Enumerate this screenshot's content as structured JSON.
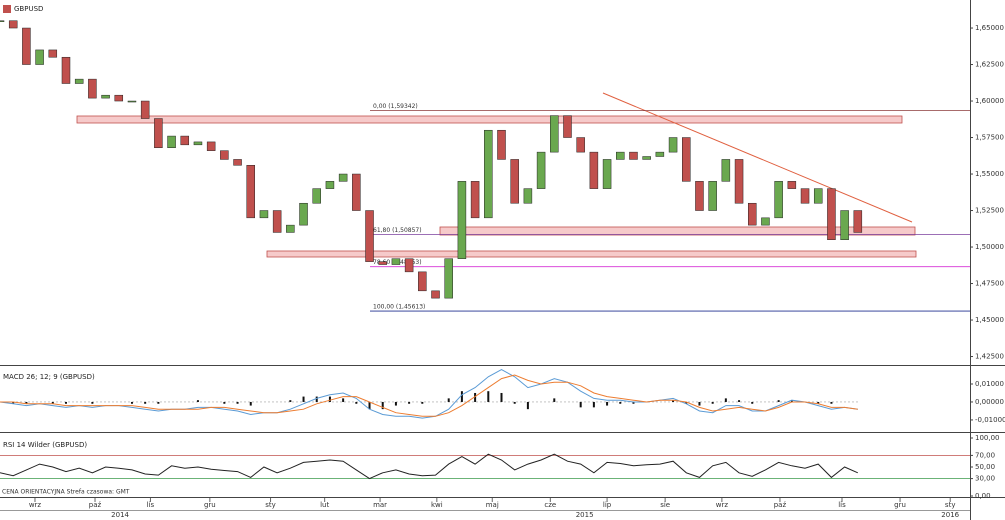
{
  "chart_data": [
    {
      "type": "candlestick",
      "title": "GBPUSD",
      "up_color": "#6aa84f",
      "down_color": "#c0504d",
      "x": [
        0,
        1,
        2,
        3,
        4,
        5,
        6,
        7,
        8,
        9,
        10,
        11,
        12,
        13,
        14,
        15,
        16,
        17,
        18,
        19,
        20,
        21,
        22,
        23,
        24,
        25,
        26,
        27,
        28,
        29,
        30,
        31,
        32,
        33,
        34,
        35,
        36,
        37,
        38,
        39,
        40,
        41,
        42,
        43,
        44,
        45,
        46,
        47,
        48,
        49,
        50,
        51,
        52,
        53,
        54,
        55,
        56,
        57,
        58,
        59,
        60,
        61,
        62,
        63,
        64,
        65
      ],
      "close": [
        1.655,
        1.65,
        1.625,
        1.635,
        1.63,
        1.612,
        1.615,
        1.602,
        1.604,
        1.6,
        1.6,
        1.588,
        1.568,
        1.576,
        1.57,
        1.572,
        1.566,
        1.56,
        1.556,
        1.52,
        1.525,
        1.51,
        1.515,
        1.53,
        1.54,
        1.545,
        1.55,
        1.525,
        1.49,
        1.488,
        1.492,
        1.483,
        1.47,
        1.465,
        1.492,
        1.545,
        1.52,
        1.58,
        1.56,
        1.53,
        1.54,
        1.565,
        1.59,
        1.575,
        1.565,
        1.54,
        1.56,
        1.565,
        1.56,
        1.562,
        1.565,
        1.575,
        1.545,
        1.525,
        1.545,
        1.56,
        1.53,
        1.515,
        1.52,
        1.545,
        1.54,
        1.53,
        1.54,
        1.505,
        1.525,
        1.51
      ],
      "xlim": [
        0,
        73.5
      ],
      "ylim": [
        1.4192,
        1.6692
      ],
      "yticks": [
        {
          "value": 1.65,
          "label": "1,65000"
        },
        {
          "value": 1.625,
          "label": "1,62500"
        },
        {
          "value": 1.6,
          "label": "1,60000"
        },
        {
          "value": 1.575,
          "label": "1,57500"
        },
        {
          "value": 1.55,
          "label": "1,55000"
        },
        {
          "value": 1.525,
          "label": "1,52500"
        },
        {
          "value": 1.5,
          "label": "1,50000"
        },
        {
          "value": 1.475,
          "label": "1,47500"
        },
        {
          "value": 1.45,
          "label": "1,45000"
        },
        {
          "value": 1.425,
          "label": "1,42500"
        }
      ],
      "levels": [
        {
          "label": "0,00 (1,59342)",
          "value": 1.59342,
          "color": "#8b3a3a"
        },
        {
          "label": "61,80 (1,50857)",
          "value": 1.50857,
          "color": "#7b3f9e"
        },
        {
          "label": "78,60 (1,48653)",
          "value": 1.48653,
          "color": "#d633d6"
        },
        {
          "label": "100,00 (1,45613)",
          "value": 1.45613,
          "color": "#1f2f8f"
        }
      ]
    },
    {
      "type": "line",
      "title": "MACD 26; 12; 9 (GBPUSD)",
      "x": [
        0,
        1,
        2,
        3,
        4,
        5,
        6,
        7,
        8,
        9,
        10,
        11,
        12,
        13,
        14,
        15,
        16,
        17,
        18,
        19,
        20,
        21,
        22,
        23,
        24,
        25,
        26,
        27,
        28,
        29,
        30,
        31,
        32,
        33,
        34,
        35,
        36,
        37,
        38,
        39,
        40,
        41,
        42,
        43,
        44,
        45,
        46,
        47,
        48,
        49,
        50,
        51,
        52,
        53,
        54,
        55,
        56,
        57,
        58,
        59,
        60,
        61,
        62,
        63,
        64,
        65
      ],
      "series": [
        {
          "color": "#5b9bd5",
          "values": [
            0,
            -0.001,
            -0.002,
            -0.001,
            -0.002,
            -0.003,
            -0.002,
            -0.003,
            -0.002,
            -0.002,
            -0.003,
            -0.004,
            -0.005,
            -0.004,
            -0.004,
            -0.003,
            -0.003,
            -0.004,
            -0.005,
            -0.007,
            -0.006,
            -0.006,
            -0.004,
            -0.001,
            0.002,
            0.004,
            0.005,
            0.002,
            -0.004,
            -0.007,
            -0.008,
            -0.008,
            -0.009,
            -0.008,
            -0.004,
            0.004,
            0.008,
            0.014,
            0.018,
            0.014,
            0.008,
            0.01,
            0.013,
            0.011,
            0.006,
            0.002,
            0.001,
            0.001,
            0.0,
            0.0,
            0.001,
            0.002,
            -0.001,
            -0.005,
            -0.006,
            -0.002,
            -0.002,
            -0.005,
            -0.005,
            -0.002,
            0.001,
            0.0,
            -0.002,
            -0.004,
            -0.003,
            -0.004
          ]
        },
        {
          "color": "#ed7d31",
          "values": [
            0,
            0,
            -0.001,
            -0.001,
            -0.001,
            -0.002,
            -0.002,
            -0.002,
            -0.002,
            -0.002,
            -0.002,
            -0.003,
            -0.004,
            -0.004,
            -0.004,
            -0.004,
            -0.003,
            -0.003,
            -0.004,
            -0.005,
            -0.006,
            -0.006,
            -0.005,
            -0.004,
            -0.001,
            0.001,
            0.003,
            0.003,
            0.0,
            -0.003,
            -0.006,
            -0.007,
            -0.008,
            -0.008,
            -0.006,
            -0.002,
            0.003,
            0.008,
            0.013,
            0.015,
            0.012,
            0.01,
            0.011,
            0.011,
            0.009,
            0.005,
            0.003,
            0.002,
            0.001,
            0.0,
            0.001,
            0.001,
            0.0,
            -0.003,
            -0.005,
            -0.004,
            -0.003,
            -0.004,
            -0.005,
            -0.003,
            0.0,
            0.0,
            -0.001,
            -0.003,
            -0.003,
            -0.004
          ]
        }
      ],
      "histogram": [
        0,
        -0.001,
        -0.001,
        0,
        -0.001,
        -0.001,
        0,
        -0.001,
        0,
        0,
        -0.001,
        -0.001,
        -0.001,
        0,
        0,
        0.001,
        0,
        -0.001,
        -0.001,
        -0.002,
        0,
        0,
        0.001,
        0.003,
        0.003,
        0.003,
        0.002,
        -0.001,
        -0.004,
        -0.004,
        -0.002,
        -0.001,
        -0.001,
        0,
        0.002,
        0.006,
        0.005,
        0.006,
        0.005,
        -0.001,
        -0.004,
        0,
        0.002,
        0,
        -0.003,
        -0.003,
        -0.002,
        -0.001,
        -0.001,
        0,
        0,
        0.001,
        -0.001,
        -0.002,
        -0.001,
        0.002,
        0.001,
        -0.001,
        0,
        0.001,
        0.001,
        0,
        -0.001,
        -0.001,
        0,
        0
      ],
      "xlim": [
        0,
        73.5
      ],
      "ylim": [
        -0.0156,
        0.0189
      ],
      "yticks": [
        {
          "value": 0.01,
          "label": "0,01000"
        },
        {
          "value": 0,
          "label": "0,00000"
        },
        {
          "value": -0.01,
          "label": "-0,01000"
        }
      ]
    },
    {
      "type": "line",
      "title": "RSI 14 Wilder (GBPUSD)",
      "x": [
        0,
        1,
        2,
        3,
        4,
        5,
        6,
        7,
        8,
        9,
        10,
        11,
        12,
        13,
        14,
        15,
        16,
        17,
        18,
        19,
        20,
        21,
        22,
        23,
        24,
        25,
        26,
        27,
        28,
        29,
        30,
        31,
        32,
        33,
        34,
        35,
        36,
        37,
        38,
        39,
        40,
        41,
        42,
        43,
        44,
        45,
        46,
        47,
        48,
        49,
        50,
        51,
        52,
        53,
        54,
        55,
        56,
        57,
        58,
        59,
        60,
        61,
        62,
        63,
        64,
        65
      ],
      "series": [
        {
          "color": "#222222",
          "values": [
            40,
            35,
            45,
            55,
            50,
            42,
            48,
            40,
            50,
            48,
            45,
            38,
            36,
            52,
            48,
            50,
            46,
            44,
            42,
            32,
            50,
            40,
            48,
            58,
            60,
            62,
            60,
            45,
            30,
            40,
            45,
            38,
            35,
            36,
            55,
            68,
            55,
            72,
            62,
            45,
            55,
            62,
            72,
            60,
            55,
            40,
            58,
            56,
            52,
            54,
            55,
            60,
            40,
            32,
            52,
            58,
            40,
            34,
            45,
            58,
            52,
            48,
            55,
            32,
            50,
            40
          ]
        }
      ],
      "levels": [
        {
          "value": 70,
          "color": "#c0504d"
        },
        {
          "value": 30,
          "color": "#3a9a4a"
        }
      ],
      "xlim": [
        0,
        73.5
      ],
      "ylim": [
        0,
        100
      ],
      "yticks": [
        {
          "value": 100,
          "label": "100,00"
        },
        {
          "value": 70,
          "label": "70,00"
        },
        {
          "value": 50,
          "label": "50,00"
        },
        {
          "value": 30,
          "label": "30,00"
        },
        {
          "value": 0,
          "label": "0,00"
        }
      ],
      "xticks": [
        {
          "value": 2.65,
          "label": "wrz"
        },
        {
          "value": 7.2,
          "label": "paź"
        },
        {
          "value": 11.4,
          "label": "lis"
        },
        {
          "value": 15.9,
          "label": "gru"
        },
        {
          "value": 20.5,
          "label": "sty"
        },
        {
          "value": 24.6,
          "label": "lut"
        },
        {
          "value": 28.8,
          "label": "mar"
        },
        {
          "value": 33.1,
          "label": "kwi"
        },
        {
          "value": 37.3,
          "label": "maj"
        },
        {
          "value": 41.7,
          "label": "cze"
        },
        {
          "value": 46,
          "label": "lip"
        },
        {
          "value": 50.4,
          "label": "sie"
        },
        {
          "value": 54.7,
          "label": "wrz"
        },
        {
          "value": 59.1,
          "label": "paź"
        },
        {
          "value": 63.8,
          "label": "lis"
        },
        {
          "value": 68.2,
          "label": "gru"
        },
        {
          "value": 72,
          "label": "sty"
        }
      ],
      "year_ticks": [
        {
          "value": 9.1,
          "label": "2014"
        },
        {
          "value": 44.3,
          "label": "2015"
        },
        {
          "value": 72,
          "label": "2016"
        }
      ]
    }
  ],
  "footer": "CENA ORIENTACYJNA   Strefa czasowa: GMT"
}
